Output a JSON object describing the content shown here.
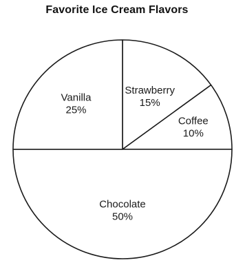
{
  "chart_data": {
    "type": "pie",
    "title": "Favorite Ice Cream Flavors",
    "slices": [
      {
        "label": "Strawberry",
        "value": 15,
        "value_label": "15%"
      },
      {
        "label": "Coffee",
        "value": 10,
        "value_label": "10%"
      },
      {
        "label": "Chocolate",
        "value": 50,
        "value_label": "50%"
      },
      {
        "label": "Vanilla",
        "value": 25,
        "value_label": "25%"
      }
    ],
    "slice_fill": "#ffffff",
    "line_color": "#1a1a1a",
    "legend": "none"
  }
}
